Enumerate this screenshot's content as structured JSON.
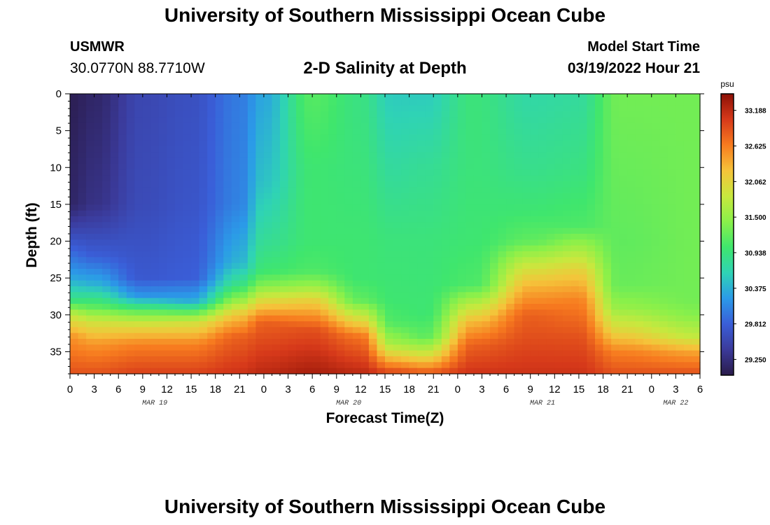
{
  "header": {
    "title": "University of Southern Mississippi Ocean Cube",
    "station": "USMWR",
    "coords": "30.0770N  88.7710W",
    "plot_title": "2-D Salinity at Depth",
    "model_start_label": "Model Start Time",
    "model_start_value": "03/19/2022 Hour 21"
  },
  "footer": {
    "title": "University of Southern Mississippi Ocean Cube"
  },
  "chart_data": {
    "type": "heatmap",
    "variable": "Salinity",
    "unit": "psu",
    "xlabel": "Forecast Time(Z)",
    "ylabel": "Depth (ft)",
    "x_hours_range": [
      0,
      78
    ],
    "y_range": [
      0,
      38
    ],
    "x_tick_labels": [
      "0",
      "3",
      "6",
      "9",
      "12",
      "15",
      "18",
      "21",
      "0",
      "3",
      "6",
      "9",
      "12",
      "15",
      "18",
      "21",
      "0",
      "3",
      "6",
      "9",
      "12",
      "15",
      "18",
      "21",
      "0",
      "3",
      "6"
    ],
    "y_tick_labels": [
      "0",
      "5",
      "10",
      "15",
      "20",
      "25",
      "30",
      "35"
    ],
    "date_labels": [
      {
        "label": "MAR 19",
        "hour": 10.5
      },
      {
        "label": "MAR 20",
        "hour": 34.5
      },
      {
        "label": "MAR 21",
        "hour": 58.5
      },
      {
        "label": "MAR 22",
        "hour": 75
      }
    ],
    "colorbar": {
      "unit": "psu",
      "min": 29.0,
      "max": 33.45,
      "ticks": [
        33.188,
        32.625,
        32.062,
        31.5,
        30.938,
        30.375,
        29.812,
        29.25
      ],
      "colors": [
        "#2a1b4a",
        "#3b3a9a",
        "#3a5ed8",
        "#2b9ae8",
        "#2fd3b5",
        "#3fe66d",
        "#8af04a",
        "#c8e83e",
        "#f5c33a",
        "#f77b1f",
        "#d6391a",
        "#8c1006"
      ]
    },
    "profile_columns": [
      {
        "hour": 0,
        "surface": 29.0,
        "depths": [
          [
            0,
            29.05
          ],
          [
            15,
            29.15
          ],
          [
            20,
            29.7
          ],
          [
            25,
            30.3
          ],
          [
            28,
            30.9
          ],
          [
            30,
            31.8
          ],
          [
            33,
            32.5
          ],
          [
            38,
            32.9
          ]
        ]
      },
      {
        "hour": 3,
        "surface": 29.15,
        "depths": [
          [
            0,
            29.15
          ],
          [
            15,
            29.3
          ],
          [
            22,
            29.8
          ],
          [
            26,
            30.4
          ],
          [
            29,
            31.2
          ],
          [
            31,
            31.9
          ],
          [
            34,
            32.5
          ],
          [
            38,
            32.9
          ]
        ]
      },
      {
        "hour": 9,
        "surface": 29.6,
        "depths": [
          [
            0,
            29.55
          ],
          [
            15,
            29.6
          ],
          [
            25,
            29.75
          ],
          [
            27.5,
            30.2
          ],
          [
            29.5,
            31.2
          ],
          [
            31.5,
            32.0
          ],
          [
            34,
            32.6
          ],
          [
            38,
            33.0
          ]
        ]
      },
      {
        "hour": 15,
        "surface": 29.65,
        "depths": [
          [
            0,
            29.65
          ],
          [
            15,
            29.7
          ],
          [
            25,
            29.8
          ],
          [
            28,
            30.3
          ],
          [
            29.5,
            31.1
          ],
          [
            31,
            31.9
          ],
          [
            34,
            32.6
          ],
          [
            38,
            33.0
          ]
        ]
      },
      {
        "hour": 21,
        "surface": 30.0,
        "depths": [
          [
            0,
            30.0
          ],
          [
            15,
            30.05
          ],
          [
            23,
            30.4
          ],
          [
            26,
            30.9
          ],
          [
            28,
            31.5
          ],
          [
            30,
            32.2
          ],
          [
            33,
            32.8
          ],
          [
            38,
            33.1
          ]
        ]
      },
      {
        "hour": 24,
        "surface": 30.3,
        "depths": [
          [
            0,
            30.3
          ],
          [
            12,
            30.5
          ],
          [
            20,
            30.8
          ],
          [
            24,
            31.0
          ],
          [
            26,
            31.4
          ],
          [
            28,
            32.0
          ],
          [
            31,
            32.8
          ],
          [
            38,
            33.2
          ]
        ]
      },
      {
        "hour": 30,
        "surface": 31.2,
        "depths": [
          [
            0,
            31.15
          ],
          [
            10,
            31.0
          ],
          [
            20,
            31.0
          ],
          [
            24,
            31.1
          ],
          [
            26,
            31.5
          ],
          [
            28,
            32.1
          ],
          [
            32,
            32.9
          ],
          [
            38,
            33.3
          ]
        ]
      },
      {
        "hour": 36,
        "surface": 30.9,
        "depths": [
          [
            0,
            30.9
          ],
          [
            10,
            30.95
          ],
          [
            20,
            31.0
          ],
          [
            25,
            31.0
          ],
          [
            28,
            31.2
          ],
          [
            30,
            31.8
          ],
          [
            33,
            32.7
          ],
          [
            38,
            33.2
          ]
        ]
      },
      {
        "hour": 40,
        "surface": 30.55,
        "depths": [
          [
            0,
            30.55
          ],
          [
            10,
            30.75
          ],
          [
            20,
            30.95
          ],
          [
            28,
            31.0
          ],
          [
            31,
            31.1
          ],
          [
            34,
            31.6
          ],
          [
            36,
            32.3
          ],
          [
            38,
            33.0
          ]
        ]
      },
      {
        "hour": 44,
        "surface": 30.55,
        "depths": [
          [
            0,
            30.55
          ],
          [
            10,
            30.8
          ],
          [
            20,
            30.95
          ],
          [
            30,
            31.0
          ],
          [
            33,
            31.2
          ],
          [
            35,
            31.8
          ],
          [
            37,
            32.5
          ],
          [
            38,
            32.9
          ]
        ]
      },
      {
        "hour": 50,
        "surface": 30.95,
        "depths": [
          [
            0,
            30.95
          ],
          [
            10,
            30.95
          ],
          [
            20,
            31.0
          ],
          [
            26,
            31.1
          ],
          [
            28,
            31.6
          ],
          [
            31,
            32.3
          ],
          [
            34,
            32.8
          ],
          [
            38,
            33.1
          ]
        ]
      },
      {
        "hour": 57,
        "surface": 30.7,
        "depths": [
          [
            0,
            30.7
          ],
          [
            10,
            30.85
          ],
          [
            16,
            31.0
          ],
          [
            20,
            31.2
          ],
          [
            23,
            31.8
          ],
          [
            26,
            32.3
          ],
          [
            30,
            32.8
          ],
          [
            38,
            33.1
          ]
        ]
      },
      {
        "hour": 63,
        "surface": 30.75,
        "depths": [
          [
            0,
            30.75
          ],
          [
            10,
            30.9
          ],
          [
            18,
            31.1
          ],
          [
            21,
            31.6
          ],
          [
            24,
            32.1
          ],
          [
            28,
            32.6
          ],
          [
            33,
            32.9
          ],
          [
            38,
            33.1
          ]
        ]
      },
      {
        "hour": 68,
        "surface": 31.3,
        "depths": [
          [
            0,
            31.3
          ],
          [
            10,
            31.25
          ],
          [
            20,
            31.2
          ],
          [
            26,
            31.25
          ],
          [
            29,
            31.5
          ],
          [
            32,
            32.0
          ],
          [
            35,
            32.6
          ],
          [
            38,
            32.9
          ]
        ]
      },
      {
        "hour": 78,
        "surface": 31.3,
        "depths": [
          [
            0,
            31.3
          ],
          [
            10,
            31.3
          ],
          [
            20,
            31.3
          ],
          [
            28,
            31.3
          ],
          [
            30,
            31.4
          ],
          [
            33,
            31.8
          ],
          [
            35,
            32.4
          ],
          [
            38,
            32.9
          ]
        ]
      }
    ]
  }
}
